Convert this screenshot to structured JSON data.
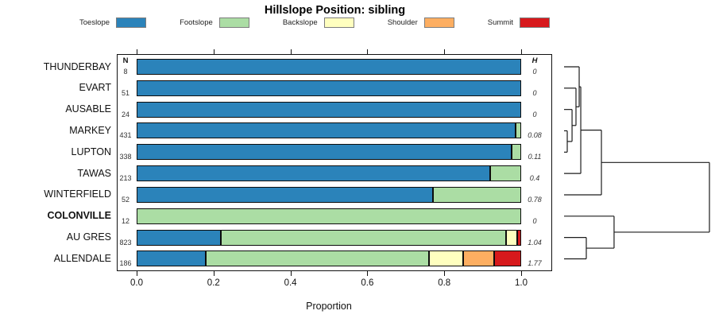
{
  "title": "Hillslope Position: sibling",
  "columns": {
    "n_header": "N",
    "h_header": "H"
  },
  "chart_data": {
    "type": "bar",
    "stacked": true,
    "orientation": "horizontal",
    "title": "Hillslope Position: sibling",
    "xlabel": "Proportion",
    "xlim": [
      0,
      1
    ],
    "xticks": [
      "0.0",
      "0.2",
      "0.4",
      "0.6",
      "0.8",
      "1.0"
    ],
    "grid": false,
    "legend_position": "top",
    "categories": [
      "Toeslope",
      "Footslope",
      "Backslope",
      "Shoulder",
      "Summit"
    ],
    "colors": [
      "#2B83BA",
      "#ABDDA4",
      "#FFFFBF",
      "#FDAE61",
      "#D7191C"
    ],
    "rows": [
      {
        "label": "THUNDERBAY",
        "n": "8",
        "h": "0",
        "bold": false,
        "values": [
          1,
          0,
          0,
          0,
          0
        ]
      },
      {
        "label": "EVART",
        "n": "51",
        "h": "0",
        "bold": false,
        "values": [
          1,
          0,
          0,
          0,
          0
        ]
      },
      {
        "label": "AUSABLE",
        "n": "24",
        "h": "0",
        "bold": false,
        "values": [
          1,
          0,
          0,
          0,
          0
        ]
      },
      {
        "label": "MARKEY",
        "n": "431",
        "h": "0.08",
        "bold": false,
        "values": [
          0.985,
          0.015,
          0,
          0,
          0
        ]
      },
      {
        "label": "LUPTON",
        "n": "338",
        "h": "0.11",
        "bold": false,
        "values": [
          0.975,
          0.025,
          0,
          0,
          0
        ]
      },
      {
        "label": "TAWAS",
        "n": "213",
        "h": "0.4",
        "bold": false,
        "values": [
          0.92,
          0.08,
          0,
          0,
          0
        ]
      },
      {
        "label": "WINTERFIELD",
        "n": "52",
        "h": "0.78",
        "bold": false,
        "values": [
          0.77,
          0.23,
          0,
          0,
          0
        ]
      },
      {
        "label": "COLONVILLE",
        "n": "12",
        "h": "0",
        "bold": true,
        "values": [
          0,
          1,
          0,
          0,
          0
        ]
      },
      {
        "label": "AU GRES",
        "n": "823",
        "h": "1.04",
        "bold": false,
        "values": [
          0.22,
          0.74,
          0.03,
          0,
          0.01
        ]
      },
      {
        "label": "ALLENDALE",
        "n": "186",
        "h": "1.77",
        "bold": false,
        "values": [
          0.18,
          0.58,
          0.09,
          0.08,
          0.07
        ]
      }
    ],
    "dendrogram": {
      "description": "right-side hierarchical clustering of rows, heights normalized 0-1",
      "tree": {
        "h": 1.0,
        "children": [
          {
            "h": 0.257,
            "children": [
              {
                "h": 0.115,
                "children": [
                  {
                    "h": 0.104,
                    "children": [
                      {
                        "leaf": 0
                      },
                      {
                        "h": 0.082,
                        "children": [
                          {
                            "leaf": 1
                          },
                          {
                            "h": 0.055,
                            "children": [
                              {
                                "leaf": 2
                              },
                              {
                                "h": 0.022,
                                "children": [
                                  {
                                    "leaf": 3
                                  },
                                  {
                                    "leaf": 4
                                  }
                                ]
                              }
                            ]
                          }
                        ]
                      }
                    ]
                  },
                  {
                    "leaf": 5
                  }
                ]
              },
              {
                "leaf": 6
              }
            ]
          },
          {
            "h": 0.344,
            "children": [
              {
                "leaf": 7
              },
              {
                "h": 0.153,
                "children": [
                  {
                    "leaf": 8
                  },
                  {
                    "leaf": 9
                  }
                ]
              }
            ]
          }
        ]
      }
    }
  }
}
